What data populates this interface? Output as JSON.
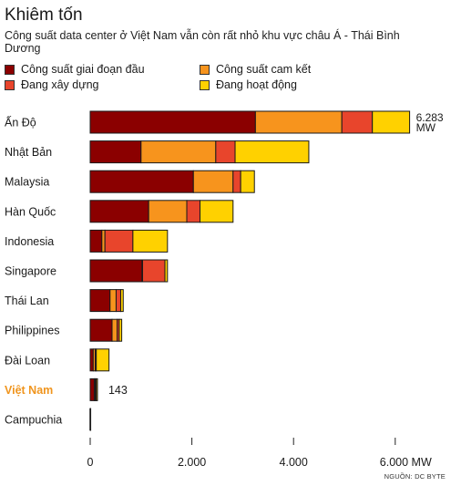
{
  "header": {
    "title": "Khiêm tốn",
    "subtitle": "Công suất data center ở Việt Nam vẫn còn rất nhỏ khu vực châu Á - Thái Bình Dương"
  },
  "source": "NGUỒN: DC BYTE",
  "colors": {
    "highlight_label": "#f0951e",
    "bar_stroke": "#1a1a1a",
    "axis": "#222222"
  },
  "chart_data": {
    "type": "bar",
    "orientation": "horizontal",
    "stacked": true,
    "title": "",
    "xlabel": "",
    "ylabel": "",
    "xlim": [
      0,
      6300
    ],
    "x_ticks": [
      0,
      2000,
      4000,
      6000
    ],
    "x_tick_labels": [
      "0",
      "2.000",
      "4.000",
      "6.000 MW"
    ],
    "grid": false,
    "legend_position": "top",
    "highlight_category": "Việt Nam",
    "categories": [
      "Ấn Độ",
      "Nhật Bản",
      "Malaysia",
      "Hàn Quốc",
      "Indonesia",
      "Singapore",
      "Thái Lan",
      "Philippines",
      "Đài Loan",
      "Việt Nam",
      "Campuchia"
    ],
    "series": [
      {
        "name": "Công suất giai đoạn đầu",
        "color": "#8b0000",
        "values": [
          3250,
          1000,
          2030,
          1150,
          230,
          1020,
          390,
          430,
          60,
          80,
          10
        ]
      },
      {
        "name": "Công suất cam kết",
        "color": "#f7941d",
        "values": [
          1700,
          1470,
          780,
          750,
          60,
          10,
          120,
          100,
          40,
          20,
          0
        ]
      },
      {
        "name": "Đang xây dựng",
        "color": "#e8452c",
        "values": [
          600,
          380,
          150,
          260,
          550,
          440,
          90,
          40,
          20,
          20,
          0
        ]
      },
      {
        "name": "Đang hoạt động",
        "color": "#ffd100",
        "values": [
          733,
          1450,
          270,
          650,
          680,
          50,
          50,
          50,
          250,
          23,
          0
        ]
      }
    ],
    "annotations": [
      {
        "category": "Ấn Độ",
        "text": "6.283 MW"
      },
      {
        "category": "Việt Nam",
        "text": "143"
      }
    ]
  }
}
